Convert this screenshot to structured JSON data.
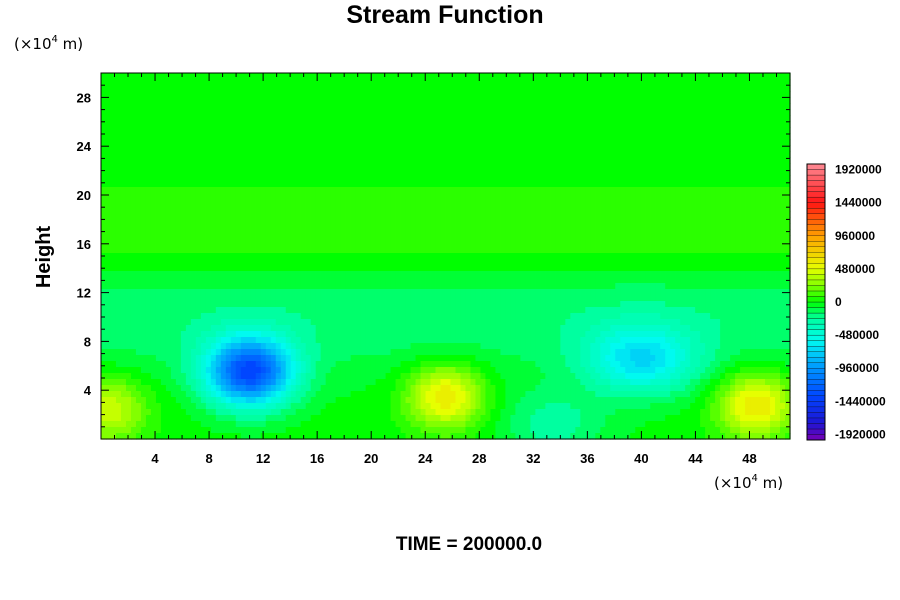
{
  "chart_data": {
    "type": "heatmap",
    "title": "Stream Function",
    "ylabel": "Height",
    "xlabel": "",
    "x_unit": {
      "prefix": "(×10",
      "exp": "4",
      "suffix": " m)"
    },
    "y_unit": {
      "prefix": "(×10",
      "exp": "4",
      "suffix": " m)"
    },
    "xlim": [
      0,
      51
    ],
    "ylim": [
      0,
      30
    ],
    "x_ticks": [
      4,
      8,
      12,
      16,
      20,
      24,
      28,
      32,
      36,
      40,
      44,
      48
    ],
    "y_ticks": [
      4,
      8,
      12,
      16,
      20,
      24,
      28
    ],
    "colorbar": {
      "labels": [
        "1920000",
        "1440000",
        "960000",
        "480000",
        "0",
        "-480000",
        "-960000",
        "-1440000",
        "-1920000"
      ],
      "min": -2000000,
      "max": 2000000
    },
    "field_features": [
      {
        "kind": "minimum",
        "x": 11,
        "y": 5.5,
        "value": -1300000
      },
      {
        "kind": "minimum",
        "x": 40,
        "y": 6.5,
        "value": -600000
      },
      {
        "kind": "minimum",
        "x": 33.5,
        "y": 1.2,
        "value": -240000
      },
      {
        "kind": "maximum",
        "x": 25.5,
        "y": 3.5,
        "value": 620000
      },
      {
        "kind": "maximum",
        "x": 48.5,
        "y": 2.8,
        "value": 620000
      },
      {
        "kind": "maximum",
        "x": 0.5,
        "y": 2.5,
        "value": 450000
      }
    ],
    "footer": "TIME = 200000.0"
  }
}
